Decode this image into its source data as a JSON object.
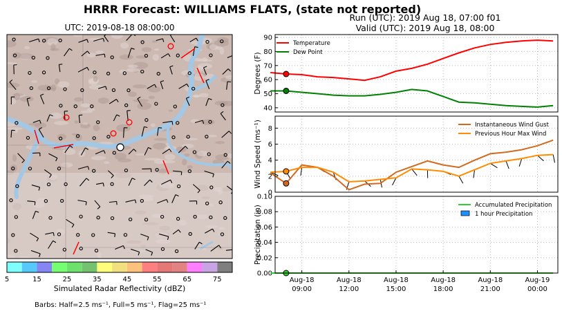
{
  "header": {
    "title": "HRRR Forecast: WILLIAMS FLATS, (state not reported)",
    "run": "Run (UTC): 2019 Aug 18, 07:00 f01",
    "valid": "Valid (UTC): 2019 Aug 18, 08:00"
  },
  "map": {
    "title": "UTC: 2019-08-18 08:00:00",
    "colorbar": {
      "label": "Simulated Radar Reflectivity (dBZ)",
      "ticks": [
        "5",
        "15",
        "25",
        "35",
        "45",
        "55",
        "65",
        "75"
      ],
      "colors": [
        "#7ffefe",
        "#56c8fa",
        "#8585f4",
        "#76fe72",
        "#6ee06c",
        "#74c270",
        "#fefe7a",
        "#f2e07e",
        "#fcc17a",
        "#fe7f7f",
        "#e67777",
        "#e28282",
        "#fe7efe",
        "#c8a4e4",
        "#7f7f7f"
      ]
    },
    "barbs_note": "Barbs: Half=2.5 ms⁻¹, Full=5 ms⁻¹, Flag=25 ms⁻¹",
    "colors": {
      "terrain": "#cbb9b2",
      "water": "#a3c8e6"
    }
  },
  "chart_data": [
    {
      "type": "line",
      "x": [
        "2019-08-18 07:00",
        "2019-08-18 08:00",
        "2019-08-18 09:00",
        "2019-08-18 10:00",
        "2019-08-18 11:00",
        "2019-08-18 12:00",
        "2019-08-18 13:00",
        "2019-08-18 14:00",
        "2019-08-18 15:00",
        "2019-08-18 16:00",
        "2019-08-18 17:00",
        "2019-08-18 18:00",
        "2019-08-18 19:00",
        "2019-08-18 20:00",
        "2019-08-18 21:00",
        "2019-08-18 22:00",
        "2019-08-18 23:00",
        "2019-08-19 00:00",
        "2019-08-19 01:00"
      ],
      "series": [
        {
          "name": "Temperature",
          "color": "#ff0000",
          "values": [
            65,
            64,
            63.5,
            62,
            61.5,
            60.5,
            59.5,
            62,
            66,
            68,
            71,
            75,
            79,
            82.5,
            85,
            86.5,
            87.5,
            88,
            87.5
          ]
        },
        {
          "name": "Dew Point",
          "color": "#008000",
          "values": [
            52,
            52,
            51,
            50,
            49,
            48.5,
            48.5,
            49.5,
            51,
            53,
            52,
            48,
            44,
            43.5,
            42.5,
            41.5,
            41,
            40.5,
            41.5
          ]
        }
      ],
      "markers": [
        {
          "series": "Temperature",
          "x": "2019-08-18 08:00",
          "value": 64
        },
        {
          "series": "Dew Point",
          "x": "2019-08-18 08:00",
          "value": 52
        }
      ],
      "ylabel": "Degrees (F)",
      "ylim": [
        37,
        92
      ],
      "yticks": [
        40,
        50,
        60,
        70,
        80,
        90
      ],
      "legend": "top-left",
      "grid": true
    },
    {
      "type": "line",
      "x": [
        "2019-08-18 07:00",
        "2019-08-18 08:00",
        "2019-08-18 09:00",
        "2019-08-18 10:00",
        "2019-08-18 11:00",
        "2019-08-18 12:00",
        "2019-08-18 13:00",
        "2019-08-18 14:00",
        "2019-08-18 15:00",
        "2019-08-18 16:00",
        "2019-08-18 17:00",
        "2019-08-18 18:00",
        "2019-08-18 19:00",
        "2019-08-18 20:00",
        "2019-08-18 21:00",
        "2019-08-18 22:00",
        "2019-08-18 23:00",
        "2019-08-19 00:00",
        "2019-08-19 01:00"
      ],
      "series": [
        {
          "name": "Instantaneous Wind Gust",
          "color": "#d2691e",
          "values": [
            2.4,
            1.1,
            3.4,
            3.1,
            2.0,
            0.3,
            1.0,
            1.1,
            2.5,
            3.2,
            3.9,
            3.4,
            3.1,
            4.0,
            4.8,
            5.0,
            5.3,
            5.8,
            6.5
          ]
        },
        {
          "name": "Previous Hour Max Wind",
          "color": "#ff8c00",
          "values": [
            2.5,
            2.6,
            3.1,
            3.1,
            2.5,
            1.3,
            1.4,
            1.6,
            1.8,
            2.9,
            2.8,
            2.6,
            2.0,
            2.8,
            3.6,
            3.9,
            4.2,
            4.6,
            4.7
          ]
        }
      ],
      "markers": [
        {
          "series": "Instantaneous Wind Gust",
          "x": "2019-08-18 08:00",
          "value": 1.1
        },
        {
          "series": "Previous Hour Max Wind",
          "x": "2019-08-18 08:00",
          "value": 2.6
        }
      ],
      "ylabel": "Wind Speed (ms⁻¹)",
      "ylim": [
        0,
        9.5
      ],
      "yticks": [
        0,
        2,
        4,
        6,
        8
      ],
      "legend": "top-right",
      "grid": true
    },
    {
      "type": "line",
      "x": [
        "2019-08-18 07:00",
        "2019-08-18 08:00",
        "2019-08-18 09:00",
        "2019-08-18 10:00",
        "2019-08-18 11:00",
        "2019-08-18 12:00",
        "2019-08-18 13:00",
        "2019-08-18 14:00",
        "2019-08-18 15:00",
        "2019-08-18 16:00",
        "2019-08-18 17:00",
        "2019-08-18 18:00",
        "2019-08-18 19:00",
        "2019-08-18 20:00",
        "2019-08-18 21:00",
        "2019-08-18 22:00",
        "2019-08-18 23:00",
        "2019-08-19 00:00",
        "2019-08-19 01:00"
      ],
      "series": [
        {
          "name": "Accumulated Precipitation",
          "color": "#32cd32",
          "values": [
            0,
            0,
            0,
            0,
            0,
            0,
            0,
            0,
            0,
            0,
            0,
            0,
            0,
            0,
            0,
            0,
            0,
            0,
            0
          ]
        },
        {
          "name": "1 hour Precipitation",
          "color": "#1e90ff",
          "kind": "bar",
          "values": [
            0,
            0,
            0,
            0,
            0,
            0,
            0,
            0,
            0,
            0,
            0,
            0,
            0,
            0,
            0,
            0,
            0,
            0,
            0
          ]
        }
      ],
      "markers": [
        {
          "series": "Accumulated Precipitation",
          "x": "2019-08-18 08:00",
          "value": 0
        }
      ],
      "ylabel": "Precipitation (in)",
      "ylim": [
        0,
        0.1
      ],
      "yticks": [
        0.0,
        0.02,
        0.04,
        0.06,
        0.08,
        0.1
      ],
      "xticks": [
        {
          "x": "2019-08-18 09:00",
          "label": "Aug-18\n09:00"
        },
        {
          "x": "2019-08-18 12:00",
          "label": "Aug-18\n12:00"
        },
        {
          "x": "2019-08-18 15:00",
          "label": "Aug-18\n15:00"
        },
        {
          "x": "2019-08-18 18:00",
          "label": "Aug-18\n18:00"
        },
        {
          "x": "2019-08-18 21:00",
          "label": "Aug-18\n21:00"
        },
        {
          "x": "2019-08-19 00:00",
          "label": "Aug-19\n00:00"
        }
      ],
      "legend": "top-right",
      "grid": true
    }
  ]
}
